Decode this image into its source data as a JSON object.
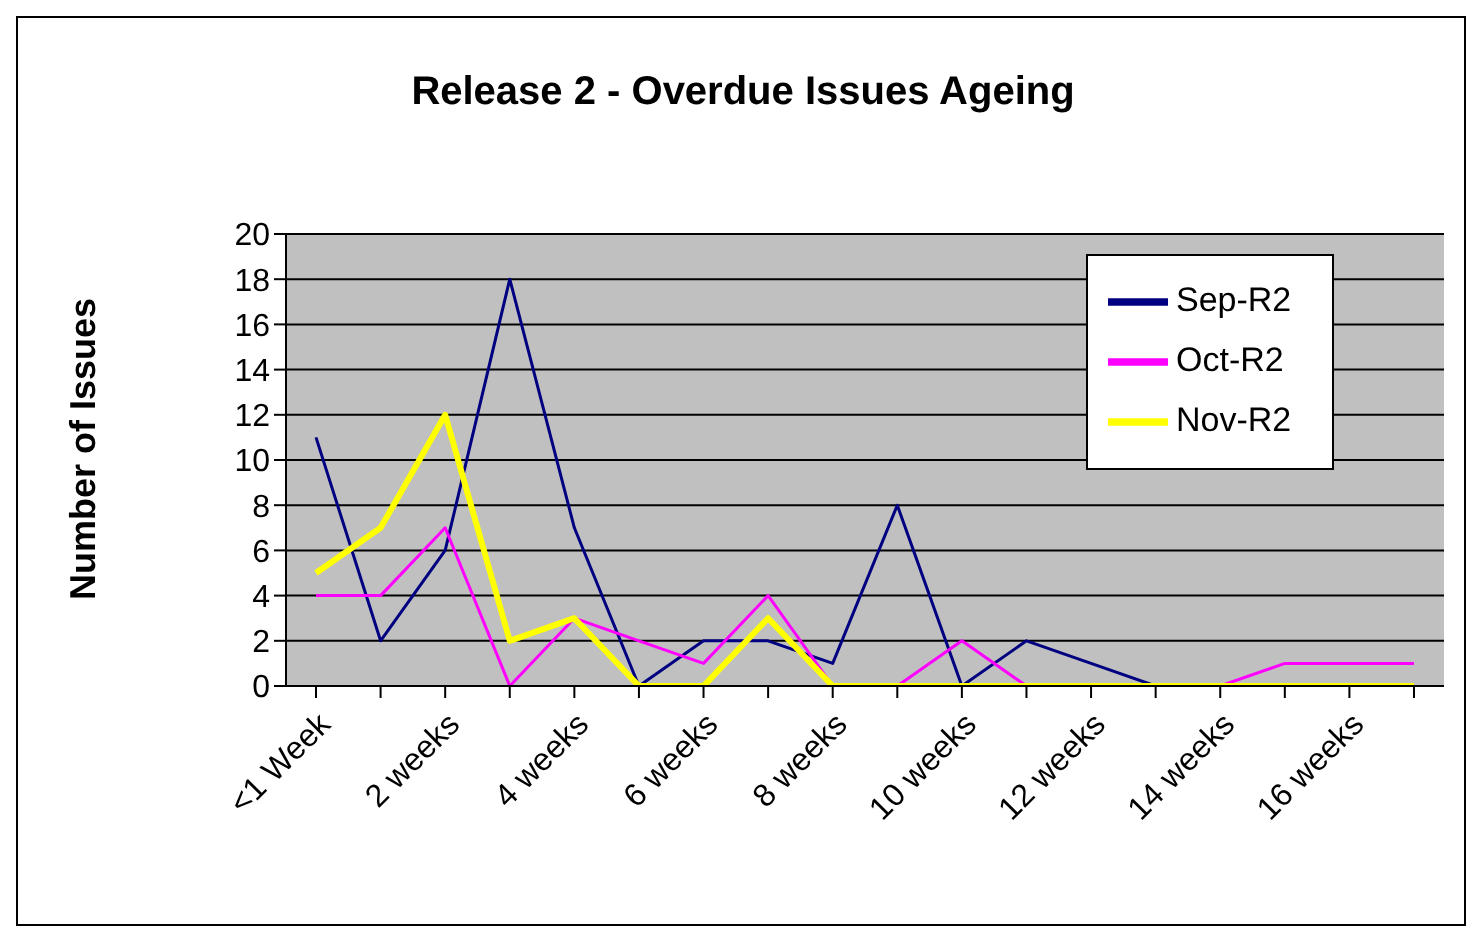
{
  "chart_data": {
    "type": "line",
    "title": "Release 2 - Overdue Issues Ageing",
    "ylabel": "Number of Issues",
    "categories": [
      "<1 Week",
      null,
      "2 weeks",
      null,
      "4 weeks",
      null,
      "6 weeks",
      null,
      "8 weeks",
      null,
      "10 weeks",
      null,
      "12 weeks",
      null,
      "14 weeks",
      null,
      "16 weeks",
      null
    ],
    "series": [
      {
        "name": "Sep-R2",
        "color": "#000080",
        "values": [
          11,
          2,
          6,
          18,
          7,
          0,
          2,
          2,
          1,
          8,
          0,
          2,
          1,
          0,
          0,
          null,
          null,
          null
        ]
      },
      {
        "name": "Oct-R2",
        "color": "#ff00ff",
        "values": [
          4,
          4,
          7,
          0,
          3,
          2,
          1,
          4,
          0,
          0,
          2,
          0,
          0,
          0,
          0,
          1,
          1,
          1
        ]
      },
      {
        "name": "Nov-R2",
        "color": "#ffff00",
        "values": [
          5,
          7,
          12,
          2,
          3,
          0,
          0,
          3,
          0,
          0,
          0,
          0,
          0,
          0,
          0,
          0,
          0,
          0
        ]
      }
    ],
    "ylim": [
      0,
      20
    ],
    "yticks": [
      0,
      2,
      4,
      6,
      8,
      10,
      12,
      14,
      16,
      18,
      20
    ],
    "grid": "y",
    "legend": "top right",
    "marker": "none",
    "line_style": "solid"
  }
}
